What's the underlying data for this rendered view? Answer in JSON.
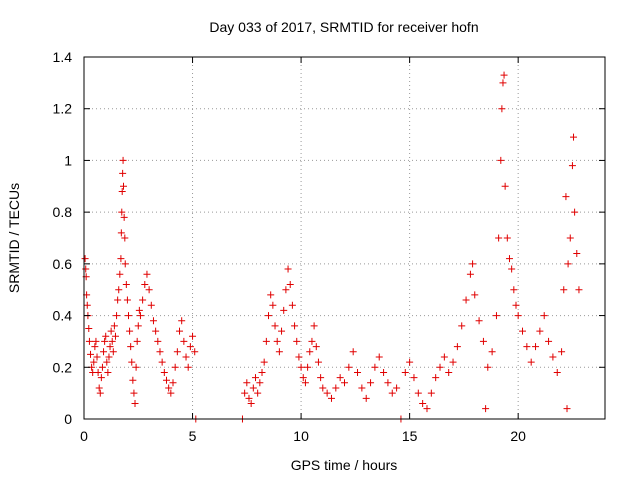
{
  "chart_data": {
    "type": "scatter",
    "title": "Day 033 of 2017, SRMTID for receiver hofn",
    "xlabel": "GPS time / hours",
    "ylabel": "SRMTID / TECUs",
    "xlim": [
      0,
      24
    ],
    "ylim": [
      0,
      1.4
    ],
    "x_ticks": [
      0,
      5,
      10,
      15,
      20
    ],
    "x_tick_labels": [
      "0",
      "5",
      "10",
      "15",
      "20"
    ],
    "y_ticks": [
      0,
      0.2,
      0.4,
      0.6,
      0.8,
      1.0,
      1.2,
      1.4
    ],
    "y_tick_labels": [
      "0",
      "0.2",
      "0.4",
      "0.6",
      "0.8",
      "1",
      "1.2",
      "1.4"
    ],
    "grid": true,
    "marker": "+",
    "series": [
      {
        "name": "SRMTID",
        "color": "#e00000",
        "points": [
          [
            0.05,
            0.62
          ],
          [
            0.08,
            0.58
          ],
          [
            0.1,
            0.55
          ],
          [
            0.12,
            0.48
          ],
          [
            0.15,
            0.44
          ],
          [
            0.18,
            0.4
          ],
          [
            0.22,
            0.35
          ],
          [
            0.25,
            0.3
          ],
          [
            0.3,
            0.25
          ],
          [
            0.35,
            0.2
          ],
          [
            0.4,
            0.18
          ],
          [
            0.45,
            0.22
          ],
          [
            0.5,
            0.28
          ],
          [
            0.55,
            0.3
          ],
          [
            0.6,
            0.24
          ],
          [
            0.65,
            0.18
          ],
          [
            0.7,
            0.12
          ],
          [
            0.75,
            0.1
          ],
          [
            0.8,
            0.16
          ],
          [
            0.85,
            0.2
          ],
          [
            0.9,
            0.26
          ],
          [
            0.95,
            0.3
          ],
          [
            1.0,
            0.32
          ],
          [
            1.05,
            0.22
          ],
          [
            1.1,
            0.18
          ],
          [
            1.15,
            0.24
          ],
          [
            1.2,
            0.28
          ],
          [
            1.25,
            0.34
          ],
          [
            1.3,
            0.3
          ],
          [
            1.35,
            0.26
          ],
          [
            1.4,
            0.36
          ],
          [
            1.45,
            0.32
          ],
          [
            1.5,
            0.4
          ],
          [
            1.55,
            0.46
          ],
          [
            1.6,
            0.5
          ],
          [
            1.65,
            0.56
          ],
          [
            1.7,
            0.62
          ],
          [
            1.72,
            0.72
          ],
          [
            1.74,
            0.8
          ],
          [
            1.76,
            0.88
          ],
          [
            1.78,
            0.95
          ],
          [
            1.8,
            1.0
          ],
          [
            1.82,
            0.9
          ],
          [
            1.85,
            0.78
          ],
          [
            1.88,
            0.7
          ],
          [
            1.9,
            0.6
          ],
          [
            1.95,
            0.52
          ],
          [
            2.0,
            0.46
          ],
          [
            2.05,
            0.4
          ],
          [
            2.1,
            0.34
          ],
          [
            2.15,
            0.28
          ],
          [
            2.2,
            0.22
          ],
          [
            2.25,
            0.15
          ],
          [
            2.3,
            0.1
          ],
          [
            2.35,
            0.06
          ],
          [
            2.4,
            0.2
          ],
          [
            2.45,
            0.3
          ],
          [
            2.5,
            0.36
          ],
          [
            2.55,
            0.42
          ],
          [
            2.6,
            0.4
          ],
          [
            2.7,
            0.46
          ],
          [
            2.8,
            0.52
          ],
          [
            2.9,
            0.56
          ],
          [
            3.0,
            0.5
          ],
          [
            3.1,
            0.44
          ],
          [
            3.2,
            0.38
          ],
          [
            3.3,
            0.34
          ],
          [
            3.4,
            0.3
          ],
          [
            3.5,
            0.26
          ],
          [
            3.6,
            0.22
          ],
          [
            3.7,
            0.18
          ],
          [
            3.8,
            0.15
          ],
          [
            3.9,
            0.12
          ],
          [
            4.0,
            0.1
          ],
          [
            4.1,
            0.14
          ],
          [
            4.2,
            0.2
          ],
          [
            4.3,
            0.26
          ],
          [
            4.4,
            0.34
          ],
          [
            4.5,
            0.38
          ],
          [
            4.6,
            0.3
          ],
          [
            4.7,
            0.24
          ],
          [
            4.8,
            0.2
          ],
          [
            4.9,
            0.28
          ],
          [
            5.0,
            0.32
          ],
          [
            5.1,
            0.26
          ],
          [
            5.15,
            0.0
          ],
          [
            7.3,
            0.0
          ],
          [
            7.4,
            0.1
          ],
          [
            7.5,
            0.14
          ],
          [
            7.6,
            0.08
          ],
          [
            7.7,
            0.06
          ],
          [
            7.8,
            0.12
          ],
          [
            7.9,
            0.16
          ],
          [
            8.0,
            0.1
          ],
          [
            8.1,
            0.14
          ],
          [
            8.2,
            0.18
          ],
          [
            8.3,
            0.22
          ],
          [
            8.4,
            0.3
          ],
          [
            8.5,
            0.4
          ],
          [
            8.6,
            0.48
          ],
          [
            8.7,
            0.44
          ],
          [
            8.8,
            0.36
          ],
          [
            8.9,
            0.3
          ],
          [
            9.0,
            0.26
          ],
          [
            9.1,
            0.34
          ],
          [
            9.2,
            0.42
          ],
          [
            9.3,
            0.5
          ],
          [
            9.4,
            0.58
          ],
          [
            9.5,
            0.52
          ],
          [
            9.6,
            0.44
          ],
          [
            9.7,
            0.36
          ],
          [
            9.8,
            0.3
          ],
          [
            9.9,
            0.24
          ],
          [
            10.0,
            0.2
          ],
          [
            10.1,
            0.16
          ],
          [
            10.2,
            0.14
          ],
          [
            10.3,
            0.2
          ],
          [
            10.4,
            0.26
          ],
          [
            10.5,
            0.3
          ],
          [
            10.6,
            0.36
          ],
          [
            10.7,
            0.28
          ],
          [
            10.8,
            0.22
          ],
          [
            10.9,
            0.16
          ],
          [
            11.0,
            0.12
          ],
          [
            11.2,
            0.1
          ],
          [
            11.4,
            0.08
          ],
          [
            11.6,
            0.12
          ],
          [
            11.8,
            0.16
          ],
          [
            12.0,
            0.14
          ],
          [
            12.2,
            0.2
          ],
          [
            12.4,
            0.26
          ],
          [
            12.6,
            0.18
          ],
          [
            12.8,
            0.12
          ],
          [
            13.0,
            0.08
          ],
          [
            13.2,
            0.14
          ],
          [
            13.4,
            0.2
          ],
          [
            13.6,
            0.24
          ],
          [
            13.8,
            0.18
          ],
          [
            14.0,
            0.14
          ],
          [
            14.2,
            0.1
          ],
          [
            14.4,
            0.12
          ],
          [
            14.6,
            0.0
          ],
          [
            14.8,
            0.18
          ],
          [
            15.0,
            0.22
          ],
          [
            15.2,
            0.16
          ],
          [
            15.4,
            0.1
          ],
          [
            15.6,
            0.06
          ],
          [
            15.8,
            0.04
          ],
          [
            16.0,
            0.1
          ],
          [
            16.2,
            0.16
          ],
          [
            16.4,
            0.2
          ],
          [
            16.6,
            0.24
          ],
          [
            16.8,
            0.18
          ],
          [
            17.0,
            0.22
          ],
          [
            17.2,
            0.28
          ],
          [
            17.4,
            0.36
          ],
          [
            17.6,
            0.46
          ],
          [
            17.8,
            0.56
          ],
          [
            17.9,
            0.6
          ],
          [
            18.0,
            0.48
          ],
          [
            18.2,
            0.38
          ],
          [
            18.4,
            0.3
          ],
          [
            18.5,
            0.04
          ],
          [
            18.6,
            0.2
          ],
          [
            18.8,
            0.26
          ],
          [
            19.0,
            0.4
          ],
          [
            19.1,
            0.7
          ],
          [
            19.2,
            1.0
          ],
          [
            19.25,
            1.2
          ],
          [
            19.3,
            1.3
          ],
          [
            19.35,
            1.33
          ],
          [
            19.4,
            0.9
          ],
          [
            19.5,
            0.7
          ],
          [
            19.6,
            0.62
          ],
          [
            19.7,
            0.58
          ],
          [
            19.8,
            0.5
          ],
          [
            19.9,
            0.44
          ],
          [
            20.0,
            0.4
          ],
          [
            20.2,
            0.34
          ],
          [
            20.4,
            0.28
          ],
          [
            20.6,
            0.22
          ],
          [
            20.8,
            0.28
          ],
          [
            21.0,
            0.34
          ],
          [
            21.2,
            0.4
          ],
          [
            21.4,
            0.3
          ],
          [
            21.6,
            0.24
          ],
          [
            21.8,
            0.18
          ],
          [
            22.0,
            0.26
          ],
          [
            22.1,
            0.5
          ],
          [
            22.2,
            0.86
          ],
          [
            22.25,
            0.04
          ],
          [
            22.3,
            0.6
          ],
          [
            22.4,
            0.7
          ],
          [
            22.5,
            0.98
          ],
          [
            22.55,
            1.09
          ],
          [
            22.6,
            0.8
          ],
          [
            22.7,
            0.64
          ],
          [
            22.8,
            0.5
          ]
        ]
      }
    ]
  }
}
